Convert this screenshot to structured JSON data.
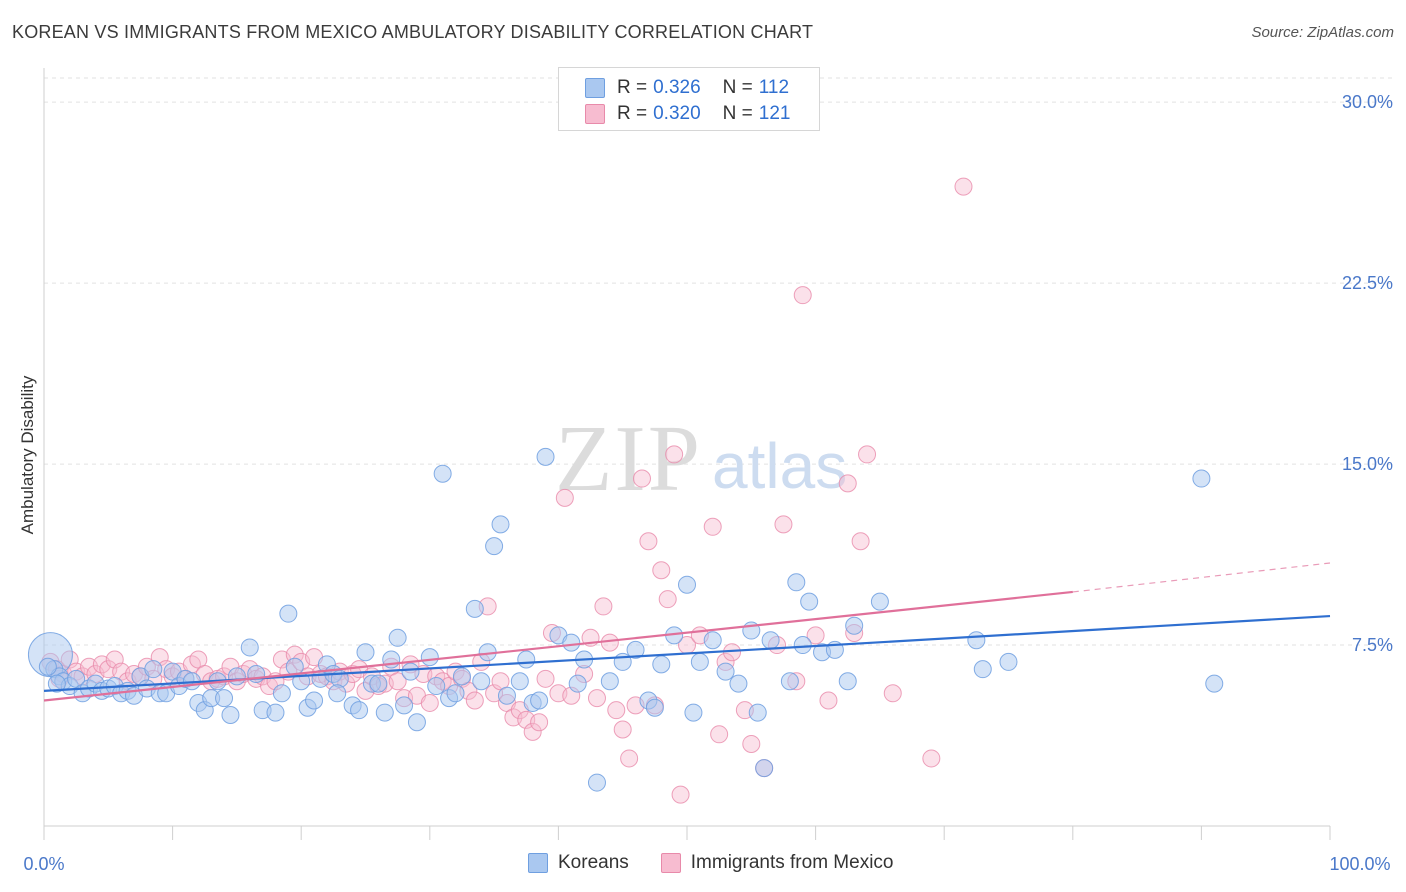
{
  "title": "KOREAN VS IMMIGRANTS FROM MEXICO AMBULATORY DISABILITY CORRELATION CHART",
  "source": "Source: ZipAtlas.com",
  "watermark": {
    "zip": "ZIP",
    "atlas": "atlas"
  },
  "legend": {
    "r_label": "R =",
    "n_label": "N =",
    "series": [
      {
        "name": "Koreans",
        "r": "0.326",
        "n": "112",
        "fill": "#aac8f0",
        "stroke": "#6f9fe0"
      },
      {
        "name": "Immigrants from Mexico",
        "r": "0.320",
        "n": "121",
        "fill": "#f7bcd0",
        "stroke": "#e88aaa"
      }
    ]
  },
  "colors": {
    "blue_line": "#2f6fd0",
    "pink_line": "#e0709a",
    "tick_text": "#4a78c9",
    "grid": "#e2e2e2"
  },
  "chart_data": {
    "type": "scatter",
    "title": "KOREAN VS IMMIGRANTS FROM MEXICO AMBULATORY DISABILITY CORRELATION CHART",
    "xlabel": "",
    "ylabel": "Ambulatory Disability",
    "xlim": [
      0,
      100
    ],
    "ylim": [
      0,
      31
    ],
    "x_tick_labels": [
      "0.0%",
      "100.0%"
    ],
    "y_ticks": [
      7.5,
      15.0,
      22.5,
      30.0
    ],
    "y_tick_labels": [
      "7.5%",
      "15.0%",
      "22.5%",
      "30.0%"
    ],
    "grid": "horizontal dashed",
    "legend_position": "top-center",
    "series": [
      {
        "name": "Koreans",
        "r": 0.326,
        "n": 112,
        "trend": {
          "x": [
            0,
            100
          ],
          "y": [
            5.6,
            8.7
          ]
        },
        "points": [
          [
            0.5,
            7.1
          ],
          [
            0.8,
            6.5
          ],
          [
            1.2,
            6.2
          ],
          [
            1.5,
            6.0
          ],
          [
            2.0,
            5.8
          ],
          [
            2.5,
            6.1
          ],
          [
            3.0,
            5.5
          ],
          [
            3.5,
            5.7
          ],
          [
            4.0,
            5.9
          ],
          [
            4.5,
            5.6
          ],
          [
            5.0,
            5.7
          ],
          [
            5.5,
            5.8
          ],
          [
            6.0,
            5.5
          ],
          [
            6.5,
            5.6
          ],
          [
            7.0,
            5.4
          ],
          [
            7.5,
            6.2
          ],
          [
            8.0,
            5.7
          ],
          [
            8.5,
            6.5
          ],
          [
            9.0,
            5.5
          ],
          [
            9.5,
            5.5
          ],
          [
            10.0,
            6.4
          ],
          [
            10.5,
            5.8
          ],
          [
            11.0,
            6.1
          ],
          [
            11.5,
            6.0
          ],
          [
            12.0,
            5.1
          ],
          [
            12.5,
            4.8
          ],
          [
            13.0,
            5.3
          ],
          [
            13.5,
            6.0
          ],
          [
            14.0,
            5.3
          ],
          [
            14.5,
            4.6
          ],
          [
            15.0,
            6.2
          ],
          [
            16.0,
            7.4
          ],
          [
            16.5,
            6.3
          ],
          [
            17.0,
            4.8
          ],
          [
            18.0,
            4.7
          ],
          [
            18.5,
            5.5
          ],
          [
            19.0,
            8.8
          ],
          [
            19.5,
            6.6
          ],
          [
            20.0,
            6.0
          ],
          [
            20.5,
            4.9
          ],
          [
            21.0,
            5.2
          ],
          [
            21.5,
            6.1
          ],
          [
            22.0,
            6.7
          ],
          [
            22.5,
            6.3
          ],
          [
            23.0,
            6.1
          ],
          [
            24.0,
            5.0
          ],
          [
            24.5,
            4.8
          ],
          [
            25.0,
            7.2
          ],
          [
            25.5,
            5.9
          ],
          [
            26.0,
            5.9
          ],
          [
            26.5,
            4.7
          ],
          [
            27.0,
            6.9
          ],
          [
            27.5,
            7.8
          ],
          [
            28.0,
            5.0
          ],
          [
            28.5,
            6.4
          ],
          [
            29.0,
            4.3
          ],
          [
            30.0,
            7.0
          ],
          [
            30.5,
            5.8
          ],
          [
            31.0,
            14.6
          ],
          [
            31.5,
            5.3
          ],
          [
            32.0,
            5.5
          ],
          [
            32.5,
            6.2
          ],
          [
            33.5,
            9.0
          ],
          [
            34.0,
            6.0
          ],
          [
            34.5,
            7.2
          ],
          [
            35.0,
            11.6
          ],
          [
            35.5,
            12.5
          ],
          [
            36.0,
            5.4
          ],
          [
            37.0,
            6.0
          ],
          [
            37.5,
            6.9
          ],
          [
            38.0,
            5.1
          ],
          [
            38.5,
            5.2
          ],
          [
            39.0,
            15.3
          ],
          [
            40.0,
            7.9
          ],
          [
            41.0,
            7.6
          ],
          [
            42.0,
            6.9
          ],
          [
            43.0,
            1.8
          ],
          [
            44.0,
            6.0
          ],
          [
            45.0,
            6.8
          ],
          [
            46.0,
            7.3
          ],
          [
            47.0,
            5.2
          ],
          [
            47.5,
            4.9
          ],
          [
            48.0,
            6.7
          ],
          [
            49.0,
            7.9
          ],
          [
            50.0,
            10.0
          ],
          [
            50.5,
            4.7
          ],
          [
            51.0,
            6.8
          ],
          [
            52.0,
            7.7
          ],
          [
            53.0,
            6.4
          ],
          [
            54.0,
            5.9
          ],
          [
            55.0,
            8.1
          ],
          [
            55.5,
            4.7
          ],
          [
            56.0,
            2.4
          ],
          [
            56.5,
            7.7
          ],
          [
            58.0,
            6.0
          ],
          [
            58.5,
            10.1
          ],
          [
            59.0,
            7.5
          ],
          [
            59.5,
            9.3
          ],
          [
            60.5,
            7.2
          ],
          [
            61.5,
            7.3
          ],
          [
            62.5,
            6.0
          ],
          [
            63.0,
            8.3
          ],
          [
            65.0,
            9.3
          ],
          [
            72.5,
            7.7
          ],
          [
            73.0,
            6.5
          ],
          [
            75.0,
            6.8
          ],
          [
            90.0,
            14.4
          ],
          [
            91.0,
            5.9
          ],
          [
            0.3,
            6.6
          ],
          [
            1.0,
            5.9
          ],
          [
            22.8,
            5.5
          ],
          [
            41.5,
            5.9
          ]
        ]
      },
      {
        "name": "Immigrants from Mexico",
        "r": 0.32,
        "n": 121,
        "trend": {
          "x": [
            0,
            80
          ],
          "y": [
            5.2,
            9.7
          ]
        },
        "trend_dashed": {
          "x": [
            80,
            100
          ],
          "y": [
            9.7,
            10.9
          ]
        },
        "points": [
          [
            0.5,
            6.8
          ],
          [
            1.0,
            6.5
          ],
          [
            1.5,
            6.3
          ],
          [
            2.0,
            6.9
          ],
          [
            2.5,
            6.4
          ],
          [
            3.0,
            6.2
          ],
          [
            3.5,
            6.6
          ],
          [
            4.0,
            6.3
          ],
          [
            4.5,
            6.7
          ],
          [
            5.0,
            6.5
          ],
          [
            5.5,
            6.9
          ],
          [
            6.0,
            6.4
          ],
          [
            6.5,
            6.0
          ],
          [
            7.0,
            6.3
          ],
          [
            7.5,
            6.2
          ],
          [
            8.0,
            6.6
          ],
          [
            8.5,
            6.1
          ],
          [
            9.0,
            7.0
          ],
          [
            9.5,
            6.5
          ],
          [
            10.0,
            6.2
          ],
          [
            10.5,
            6.4
          ],
          [
            11.0,
            6.1
          ],
          [
            11.5,
            6.7
          ],
          [
            12.0,
            6.9
          ],
          [
            12.5,
            6.3
          ],
          [
            13.0,
            6.0
          ],
          [
            13.5,
            6.1
          ],
          [
            14.0,
            6.2
          ],
          [
            14.5,
            6.6
          ],
          [
            15.0,
            6.0
          ],
          [
            15.5,
            6.3
          ],
          [
            16.0,
            6.5
          ],
          [
            16.5,
            6.1
          ],
          [
            17.0,
            6.2
          ],
          [
            17.5,
            5.8
          ],
          [
            18.0,
            6.0
          ],
          [
            18.5,
            6.9
          ],
          [
            19.0,
            6.4
          ],
          [
            19.5,
            7.1
          ],
          [
            20.0,
            6.8
          ],
          [
            20.5,
            6.2
          ],
          [
            21.0,
            7.0
          ],
          [
            21.5,
            6.3
          ],
          [
            22.0,
            6.2
          ],
          [
            22.5,
            6.0
          ],
          [
            23.0,
            6.4
          ],
          [
            23.5,
            5.9
          ],
          [
            24.0,
            6.3
          ],
          [
            24.5,
            6.5
          ],
          [
            25.0,
            5.6
          ],
          [
            25.5,
            6.2
          ],
          [
            26.0,
            5.8
          ],
          [
            26.5,
            5.9
          ],
          [
            27.0,
            6.6
          ],
          [
            27.5,
            6.0
          ],
          [
            28.0,
            5.3
          ],
          [
            28.5,
            6.7
          ],
          [
            29.0,
            5.4
          ],
          [
            29.5,
            6.3
          ],
          [
            30.0,
            5.1
          ],
          [
            30.5,
            6.2
          ],
          [
            31.0,
            6.0
          ],
          [
            31.5,
            5.8
          ],
          [
            32.0,
            6.4
          ],
          [
            32.5,
            6.1
          ],
          [
            33.0,
            5.6
          ],
          [
            33.5,
            5.2
          ],
          [
            34.0,
            6.8
          ],
          [
            34.5,
            9.1
          ],
          [
            35.0,
            5.5
          ],
          [
            35.5,
            6.0
          ],
          [
            36.0,
            5.1
          ],
          [
            36.5,
            4.5
          ],
          [
            37.0,
            4.8
          ],
          [
            37.5,
            4.4
          ],
          [
            38.0,
            3.9
          ],
          [
            38.5,
            4.3
          ],
          [
            39.0,
            6.1
          ],
          [
            39.5,
            8.0
          ],
          [
            40.0,
            5.5
          ],
          [
            40.5,
            13.6
          ],
          [
            41.0,
            5.4
          ],
          [
            42.0,
            6.3
          ],
          [
            42.5,
            7.8
          ],
          [
            43.0,
            5.3
          ],
          [
            43.5,
            9.1
          ],
          [
            44.0,
            7.6
          ],
          [
            44.5,
            4.8
          ],
          [
            45.0,
            4.0
          ],
          [
            45.5,
            2.8
          ],
          [
            46.0,
            5.0
          ],
          [
            46.5,
            14.4
          ],
          [
            47.0,
            11.8
          ],
          [
            47.5,
            5.0
          ],
          [
            48.0,
            10.6
          ],
          [
            48.5,
            9.4
          ],
          [
            49.0,
            15.4
          ],
          [
            49.5,
            1.3
          ],
          [
            50.0,
            7.5
          ],
          [
            51.0,
            7.9
          ],
          [
            52.0,
            12.4
          ],
          [
            52.5,
            3.8
          ],
          [
            53.0,
            6.8
          ],
          [
            53.5,
            7.2
          ],
          [
            54.5,
            4.8
          ],
          [
            55.0,
            3.4
          ],
          [
            56.0,
            2.4
          ],
          [
            57.5,
            12.5
          ],
          [
            58.5,
            6.0
          ],
          [
            59.0,
            22.0
          ],
          [
            60.0,
            7.9
          ],
          [
            61.0,
            5.2
          ],
          [
            62.5,
            14.2
          ],
          [
            63.5,
            11.8
          ],
          [
            64.0,
            15.4
          ],
          [
            66.0,
            5.5
          ],
          [
            69.0,
            2.8
          ],
          [
            71.5,
            26.5
          ],
          [
            63.0,
            8.0
          ],
          [
            57.0,
            7.5
          ],
          [
            1.2,
            6.1
          ]
        ]
      }
    ]
  }
}
